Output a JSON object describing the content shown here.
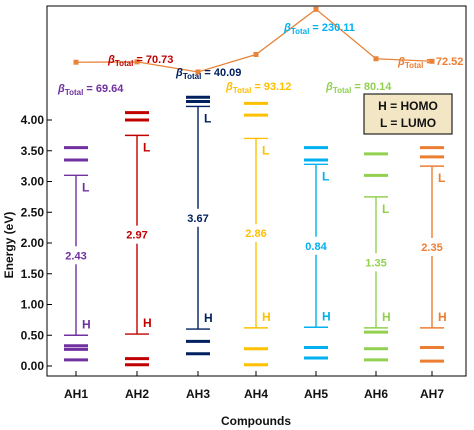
{
  "chart_data": {
    "type": "energy-level-diagram",
    "xlabel": "Compounds",
    "ylabel": "Energy (eV)",
    "ylim": [
      -0.05,
      4.4
    ],
    "yticks": [
      "0.00",
      "0.50",
      "1.00",
      "1.50",
      "2.00",
      "2.50",
      "3.00",
      "3.50",
      "4.00"
    ],
    "categories": [
      "AH1",
      "AH2",
      "AH3",
      "AH4",
      "AH5",
      "AH6",
      "AH7"
    ],
    "homo_label": "H",
    "lumo_label": "L",
    "legend": {
      "line1": "H = HOMO",
      "line2": "L = LUMO",
      "box_color": "#f2e6c4"
    },
    "beta_line_color": "#e8833a",
    "compounds": [
      {
        "name": "AH1",
        "color": "#7030a0",
        "gap": "2.43",
        "beta_value": 69.64,
        "beta_text": " = 69.64",
        "homo": 0.5,
        "lumo": 3.1,
        "levels_below": [
          0.1,
          0.27,
          0.33
        ],
        "levels_above": [
          3.35,
          3.55
        ]
      },
      {
        "name": "AH2",
        "color": "#c00000",
        "gap": "2.97",
        "beta_value": 70.73,
        "beta_text": " = 70.73",
        "homo": 0.52,
        "lumo": 3.75,
        "levels_below": [
          0.02,
          0.12
        ],
        "levels_above": [
          4.0,
          4.12
        ]
      },
      {
        "name": "AH3",
        "color": "#002060",
        "gap": "3.67",
        "beta_value": 40.09,
        "beta_text": " = 40.09",
        "homo": 0.6,
        "lumo": 4.22,
        "levels_below": [
          0.2,
          0.4
        ],
        "levels_above": [
          4.3,
          4.37
        ]
      },
      {
        "name": "AH4",
        "color": "#ffc000",
        "gap": "2.86",
        "beta_value": 93.12,
        "beta_text": " = 93.12",
        "homo": 0.62,
        "lumo": 3.7,
        "levels_below": [
          0.02,
          0.28
        ],
        "levels_above": [
          4.08,
          4.27
        ]
      },
      {
        "name": "AH5",
        "color": "#00b0f0",
        "gap": "0.84",
        "beta_value": 230.11,
        "beta_text": " = 230.11",
        "homo": 0.63,
        "lumo": 3.28,
        "levels_below": [
          0.13,
          0.3
        ],
        "levels_above": [
          3.35,
          3.55
        ]
      },
      {
        "name": "AH6",
        "color": "#92d050",
        "gap": "1.35",
        "beta_value": 80.14,
        "beta_text": " = 80.14",
        "homo": 0.62,
        "lumo": 2.75,
        "levels_below": [
          0.1,
          0.28,
          0.55
        ],
        "levels_above": [
          3.1,
          3.45
        ]
      },
      {
        "name": "AH7",
        "color": "#ed7d31",
        "gap": "2.35",
        "beta_value": 72.52,
        "beta_text": " = 72.52",
        "homo": 0.62,
        "lumo": 3.25,
        "levels_below": [
          0.08,
          0.3
        ],
        "levels_above": [
          3.4,
          3.55
        ]
      }
    ]
  }
}
